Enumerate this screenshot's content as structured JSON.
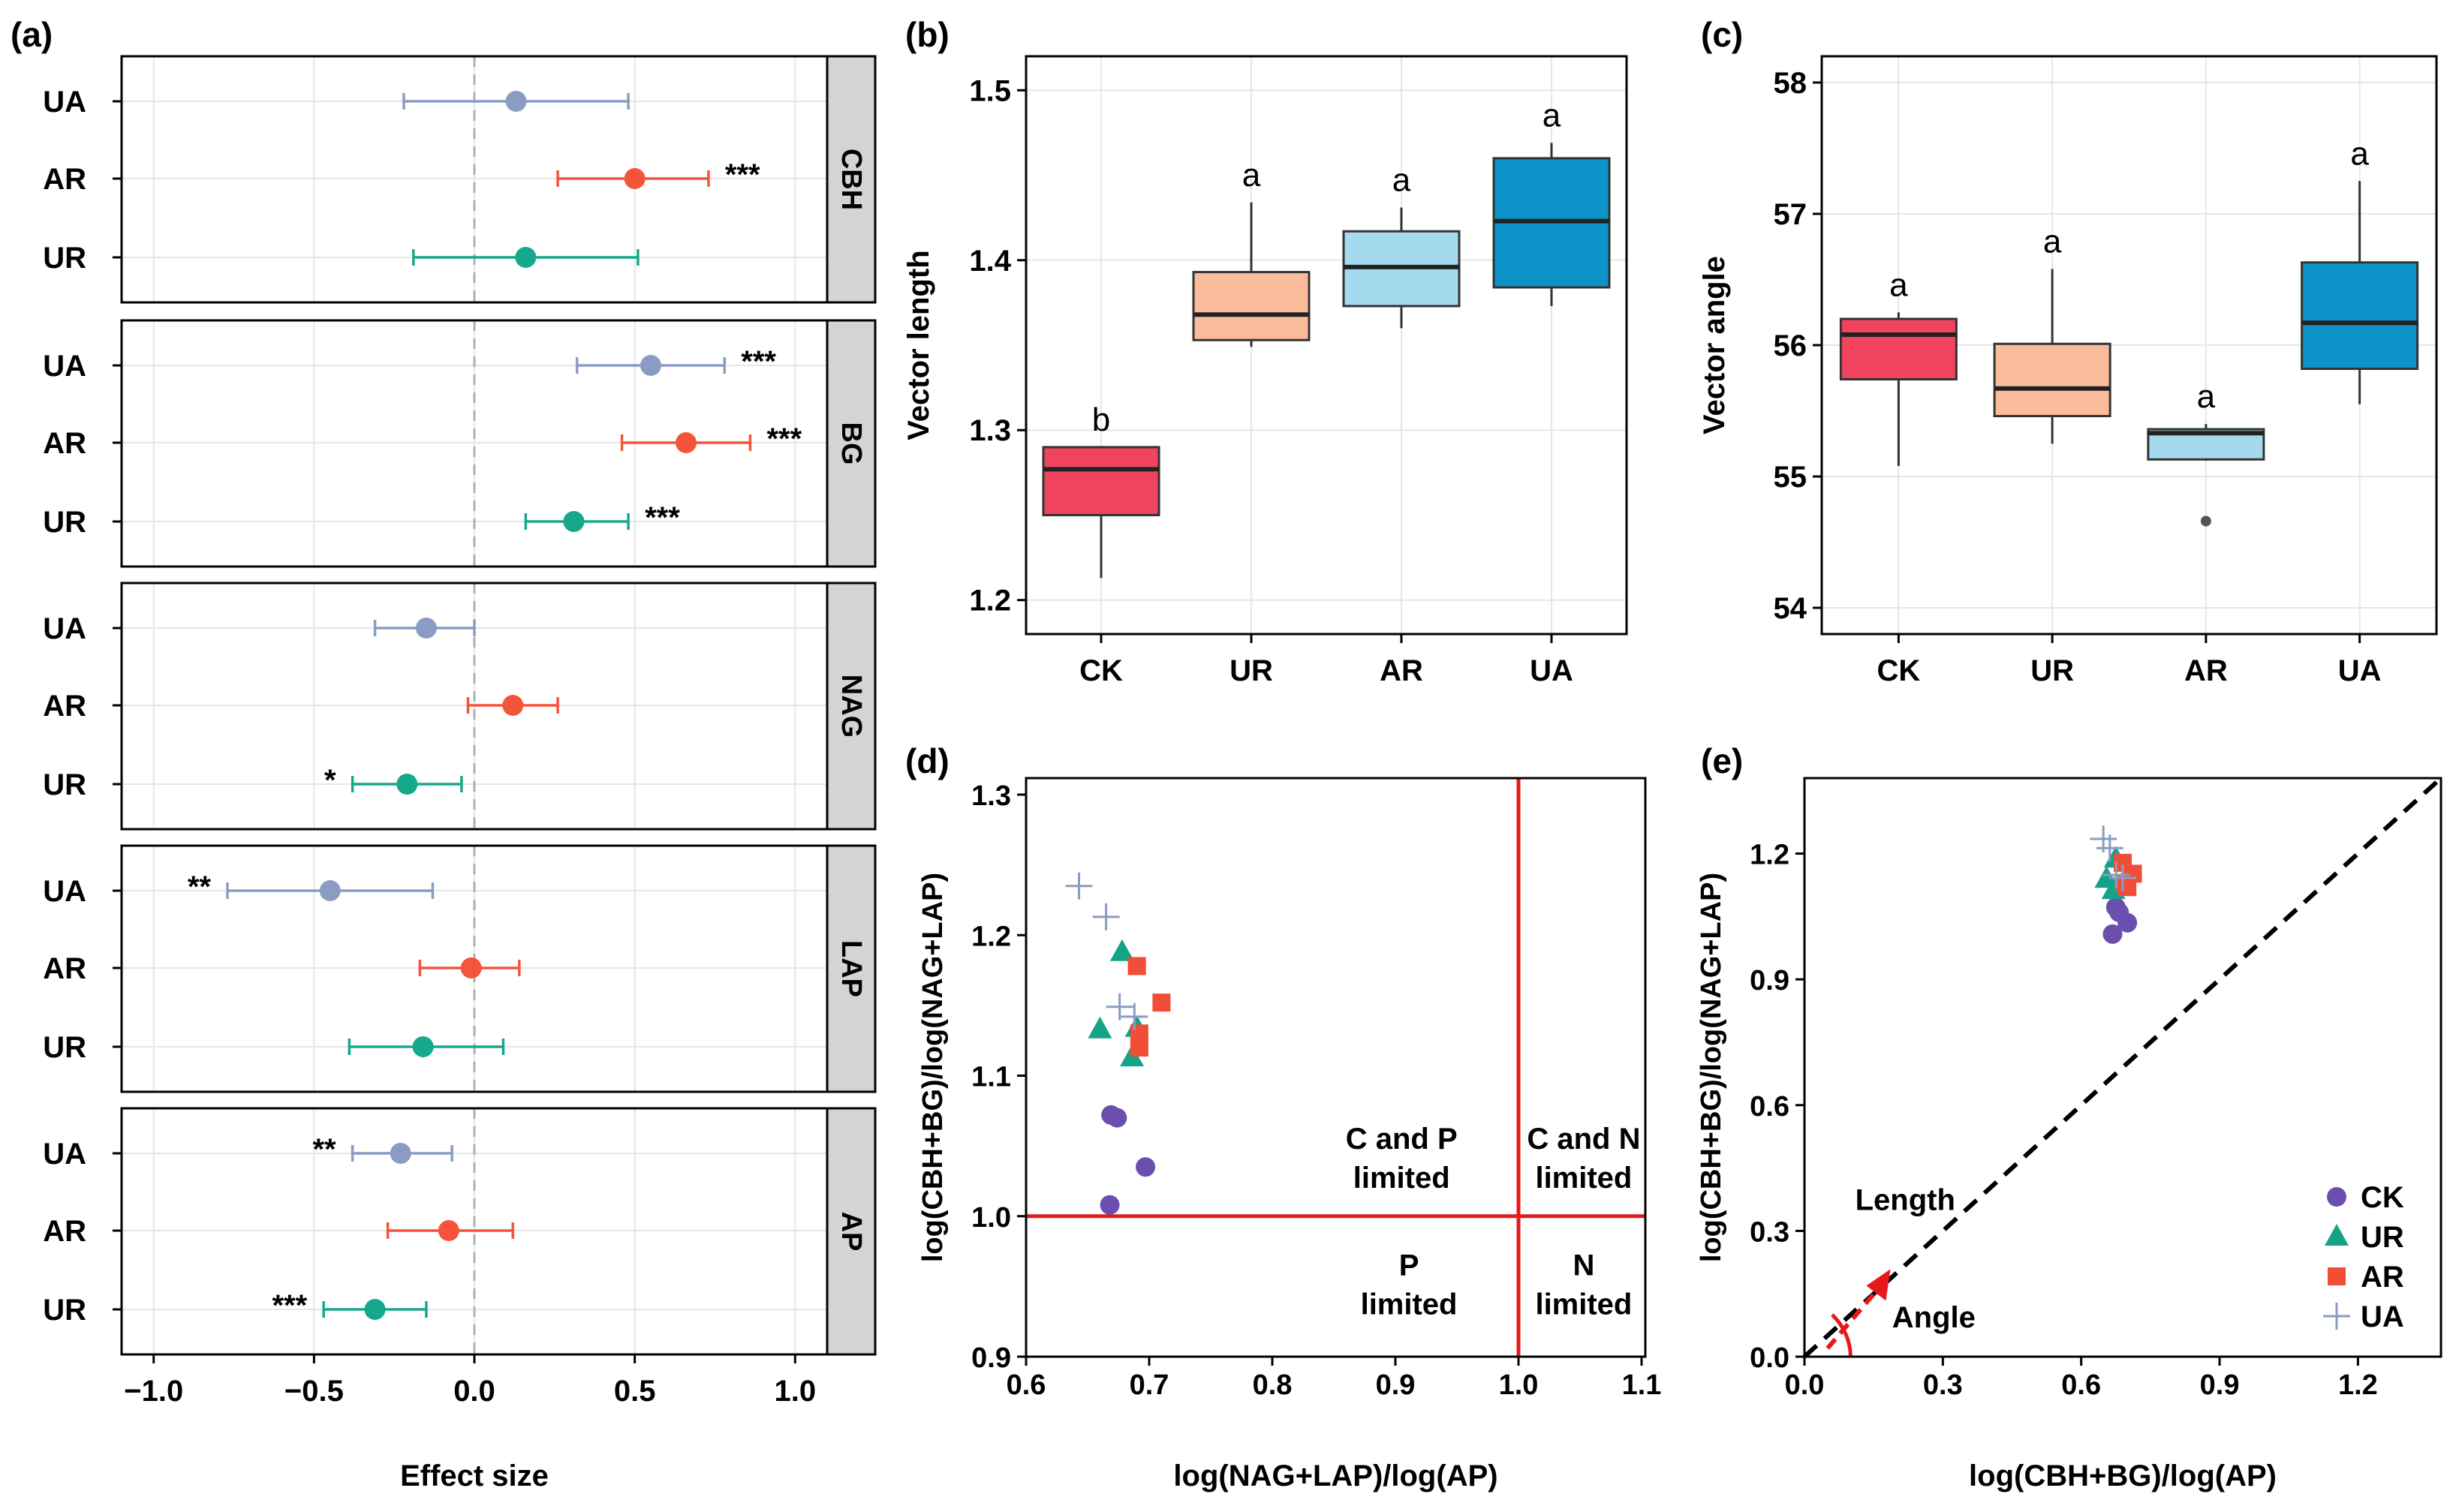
{
  "panels": {
    "a": "(a)",
    "b": "(b)",
    "c": "(c)",
    "d": "(d)",
    "e": "(e)"
  },
  "chart_data": [
    {
      "id": "a",
      "type": "forest",
      "xlabel": "Effect size",
      "xlim": [
        -1.1,
        1.1
      ],
      "xticks": [
        -1.0,
        -0.5,
        0.0,
        0.5,
        1.0
      ],
      "xticklabels": [
        "−1.0",
        "−0.5",
        "0.0",
        "0.5",
        "1.0"
      ],
      "grid": true,
      "reference_line": 0,
      "treatment_colors": {
        "UA": "#8A9CC4",
        "AR": "#F4553A",
        "UR": "#16A88A"
      },
      "facets": [
        {
          "name": "CBH",
          "rows": [
            {
              "treatment": "UA",
              "mean": 0.13,
              "lo": -0.22,
              "hi": 0.48,
              "sig": ""
            },
            {
              "treatment": "AR",
              "mean": 0.5,
              "lo": 0.26,
              "hi": 0.73,
              "sig": "***"
            },
            {
              "treatment": "UR",
              "mean": 0.16,
              "lo": -0.19,
              "hi": 0.51,
              "sig": ""
            }
          ]
        },
        {
          "name": "BG",
          "rows": [
            {
              "treatment": "UA",
              "mean": 0.55,
              "lo": 0.32,
              "hi": 0.78,
              "sig": "***"
            },
            {
              "treatment": "AR",
              "mean": 0.66,
              "lo": 0.46,
              "hi": 0.86,
              "sig": "***"
            },
            {
              "treatment": "UR",
              "mean": 0.31,
              "lo": 0.16,
              "hi": 0.48,
              "sig": "***"
            }
          ]
        },
        {
          "name": "NAG",
          "rows": [
            {
              "treatment": "UA",
              "mean": -0.15,
              "lo": -0.31,
              "hi": 0.0,
              "sig": ""
            },
            {
              "treatment": "AR",
              "mean": 0.12,
              "lo": -0.02,
              "hi": 0.26,
              "sig": ""
            },
            {
              "treatment": "UR",
              "mean": -0.21,
              "lo": -0.38,
              "hi": -0.04,
              "sig": "*"
            }
          ]
        },
        {
          "name": "LAP",
          "rows": [
            {
              "treatment": "UA",
              "mean": -0.45,
              "lo": -0.77,
              "hi": -0.13,
              "sig": "**"
            },
            {
              "treatment": "AR",
              "mean": -0.01,
              "lo": -0.17,
              "hi": 0.14,
              "sig": ""
            },
            {
              "treatment": "UR",
              "mean": -0.16,
              "lo": -0.39,
              "hi": 0.09,
              "sig": ""
            }
          ]
        },
        {
          "name": "AP",
          "rows": [
            {
              "treatment": "UA",
              "mean": -0.23,
              "lo": -0.38,
              "hi": -0.07,
              "sig": "**"
            },
            {
              "treatment": "AR",
              "mean": -0.08,
              "lo": -0.27,
              "hi": 0.12,
              "sig": ""
            },
            {
              "treatment": "UR",
              "mean": -0.31,
              "lo": -0.47,
              "hi": -0.15,
              "sig": "***"
            }
          ]
        }
      ]
    },
    {
      "id": "b",
      "type": "box",
      "ylabel": "Vector length",
      "ylim": [
        1.18,
        1.52
      ],
      "yticks": [
        1.2,
        1.3,
        1.4,
        1.5
      ],
      "categories": [
        "CK",
        "UR",
        "AR",
        "UA"
      ],
      "grid": true,
      "boxes": [
        {
          "name": "CK",
          "whisker_low": 1.213,
          "q1": 1.25,
          "median": 1.277,
          "q3": 1.29,
          "whisker_high": 1.29,
          "outliers": [],
          "letter": "b",
          "color": "#F0435E"
        },
        {
          "name": "UR",
          "whisker_low": 1.349,
          "q1": 1.353,
          "median": 1.368,
          "q3": 1.393,
          "whisker_high": 1.434,
          "outliers": [],
          "letter": "a",
          "color": "#FBBC9C"
        },
        {
          "name": "AR",
          "whisker_low": 1.36,
          "q1": 1.373,
          "median": 1.396,
          "q3": 1.417,
          "whisker_high": 1.431,
          "outliers": [],
          "letter": "a",
          "color": "#A5D9EE"
        },
        {
          "name": "UA",
          "whisker_low": 1.373,
          "q1": 1.384,
          "median": 1.423,
          "q3": 1.46,
          "whisker_high": 1.469,
          "outliers": [],
          "letter": "a",
          "color": "#0C93C8"
        }
      ]
    },
    {
      "id": "c",
      "type": "box",
      "ylabel": "Vector angle",
      "ylim": [
        53.8,
        58.2
      ],
      "yticks": [
        54,
        55,
        56,
        57,
        58
      ],
      "categories": [
        "CK",
        "UR",
        "AR",
        "UA"
      ],
      "grid": true,
      "boxes": [
        {
          "name": "CK",
          "whisker_low": 55.08,
          "q1": 55.74,
          "median": 56.08,
          "q3": 56.2,
          "whisker_high": 56.25,
          "outliers": [],
          "letter": "a",
          "color": "#F0435E"
        },
        {
          "name": "UR",
          "whisker_low": 55.25,
          "q1": 55.46,
          "median": 55.67,
          "q3": 56.01,
          "whisker_high": 56.58,
          "outliers": [],
          "letter": "a",
          "color": "#FBBC9C"
        },
        {
          "name": "AR",
          "whisker_low": 55.12,
          "q1": 55.13,
          "median": 55.33,
          "q3": 55.36,
          "whisker_high": 55.4,
          "outliers": [
            54.66
          ],
          "letter": "a",
          "color": "#A5D9EE"
        },
        {
          "name": "UA",
          "whisker_low": 55.55,
          "q1": 55.82,
          "median": 56.17,
          "q3": 56.63,
          "whisker_high": 57.25,
          "outliers": [],
          "letter": "a",
          "color": "#0C93C8"
        }
      ]
    },
    {
      "id": "d",
      "type": "scatter",
      "xlabel": "log(NAG+LAP)/log(AP)",
      "ylabel": "log(CBH+BG)/log(NAG+LAP)",
      "xlim": [
        0.6,
        1.1
      ],
      "ylim": [
        0.9,
        1.3
      ],
      "xticks": [
        0.6,
        0.7,
        0.8,
        0.9,
        1.0,
        1.1
      ],
      "xticklabels": [
        "0.6",
        "0.7",
        "0.8",
        "0.9",
        "1.0",
        "1.1"
      ],
      "yticks": [
        0.9,
        1.0,
        1.1,
        1.2,
        1.3
      ],
      "yticklabels": [
        "0.9",
        "1.0",
        "1.1",
        "1.2",
        "1.3"
      ],
      "grid": false,
      "reference_lines": {
        "x": 1.0,
        "y": 1.0
      },
      "quadrant_labels": [
        {
          "lines": [
            "C and P",
            "limited"
          ],
          "x": 0.905,
          "y": 1.048
        },
        {
          "lines": [
            "C and N",
            "limited"
          ],
          "x": 1.053,
          "y": 1.048
        },
        {
          "lines": [
            "P",
            "limited"
          ],
          "x": 0.911,
          "y": 0.958
        },
        {
          "lines": [
            "N",
            "limited"
          ],
          "x": 1.053,
          "y": 0.958
        }
      ],
      "series": [
        {
          "name": "CK",
          "marker": "circle",
          "color": "#6B4FAE",
          "points": [
            [
              0.669,
              1.072
            ],
            [
              0.674,
              1.07
            ],
            [
              0.697,
              1.035
            ],
            [
              0.668,
              1.008
            ]
          ]
        },
        {
          "name": "UR",
          "marker": "triangle",
          "color": "#14A389",
          "points": [
            [
              0.678,
              1.188
            ],
            [
              0.66,
              1.133
            ],
            [
              0.69,
              1.134
            ],
            [
              0.686,
              1.113
            ]
          ]
        },
        {
          "name": "AR",
          "marker": "square",
          "color": "#F04E36",
          "points": [
            [
              0.69,
              1.178
            ],
            [
              0.71,
              1.152
            ],
            [
              0.692,
              1.13
            ],
            [
              0.692,
              1.12
            ]
          ]
        },
        {
          "name": "UA",
          "marker": "plus",
          "color": "#8A9CC4",
          "points": [
            [
              0.643,
              1.235
            ],
            [
              0.665,
              1.213
            ],
            [
              0.676,
              1.149
            ],
            [
              0.688,
              1.142
            ]
          ]
        }
      ]
    },
    {
      "id": "e",
      "type": "scatter",
      "xlabel": "log(CBH+BG)/log(AP)",
      "ylabel": "log(CBH+BG)/log(NAG+LAP)",
      "xlim": [
        0.0,
        1.38
      ],
      "ylim": [
        0.0,
        1.38
      ],
      "xticks": [
        0.0,
        0.3,
        0.6,
        0.9,
        1.2
      ],
      "xticklabels": [
        "0.0",
        "0.3",
        "0.6",
        "0.9",
        "1.2"
      ],
      "yticks": [
        0.0,
        0.3,
        0.6,
        0.9,
        1.2
      ],
      "yticklabels": [
        "0.0",
        "0.3",
        "0.6",
        "0.9",
        "1.2"
      ],
      "grid": false,
      "reference_line": "1:1",
      "annotations": [
        {
          "text": "Length"
        },
        {
          "text": "Angle"
        }
      ],
      "legend_position": "bottom-right",
      "series": [
        {
          "name": "CK",
          "marker": "circle",
          "color": "#6B4FAE",
          "points": [
            [
              0.675,
              1.072
            ],
            [
              0.7,
              1.035
            ],
            [
              0.668,
              1.008
            ],
            [
              0.682,
              1.06
            ]
          ]
        },
        {
          "name": "UR",
          "marker": "triangle",
          "color": "#14A389",
          "points": [
            [
              0.675,
              1.188
            ],
            [
              0.655,
              1.14
            ],
            [
              0.69,
              1.13
            ],
            [
              0.67,
              1.113
            ]
          ]
        },
        {
          "name": "AR",
          "marker": "square",
          "color": "#F04E36",
          "points": [
            [
              0.69,
              1.178
            ],
            [
              0.712,
              1.152
            ],
            [
              0.695,
              1.13
            ],
            [
              0.7,
              1.12
            ]
          ]
        },
        {
          "name": "UA",
          "marker": "plus",
          "color": "#8A9CC4",
          "points": [
            [
              0.648,
              1.235
            ],
            [
              0.662,
              1.213
            ],
            [
              0.676,
              1.149
            ],
            [
              0.69,
              1.142
            ]
          ]
        }
      ]
    }
  ]
}
